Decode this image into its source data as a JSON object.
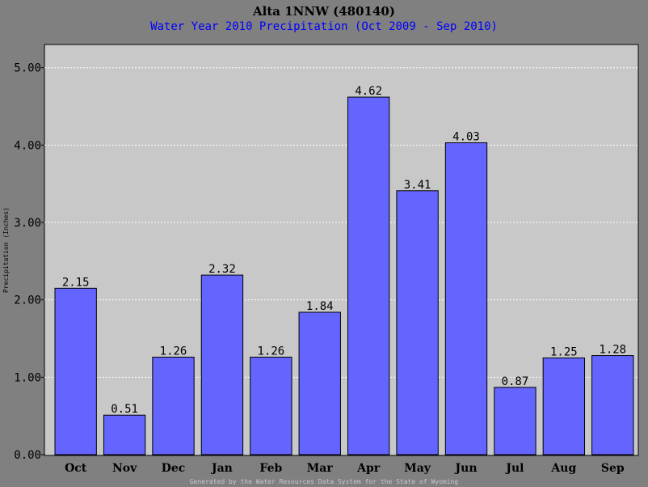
{
  "chart_data": {
    "type": "bar",
    "title": "Alta 1NNW (480140)",
    "subtitle": "Water Year 2010 Precipitation (Oct 2009 - Sep 2010)",
    "xlabel": "",
    "ylabel": "Precipitation (Inches)",
    "ylim": [
      0,
      5.0
    ],
    "yticks": [
      "0.00",
      "1.00",
      "2.00",
      "3.00",
      "4.00",
      "5.00"
    ],
    "categories": [
      "Oct",
      "Nov",
      "Dec",
      "Jan",
      "Feb",
      "Mar",
      "Apr",
      "May",
      "Jun",
      "Jul",
      "Aug",
      "Sep"
    ],
    "values": [
      2.15,
      0.51,
      1.26,
      2.32,
      1.26,
      1.84,
      4.62,
      3.41,
      4.03,
      0.87,
      1.25,
      1.28
    ],
    "value_labels": [
      "2.15",
      "0.51",
      "1.26",
      "2.32",
      "1.26",
      "1.84",
      "4.62",
      "3.41",
      "4.03",
      "0.87",
      "1.25",
      "1.28"
    ],
    "grid": true,
    "legend": "none",
    "bar_color": "#6464ff",
    "plot_background": "#c8c8c8",
    "page_background": "#808080",
    "subtitle_color": "#0000ff",
    "footer": "Generated by the Water Resources Data System for the State of Wyoming"
  }
}
